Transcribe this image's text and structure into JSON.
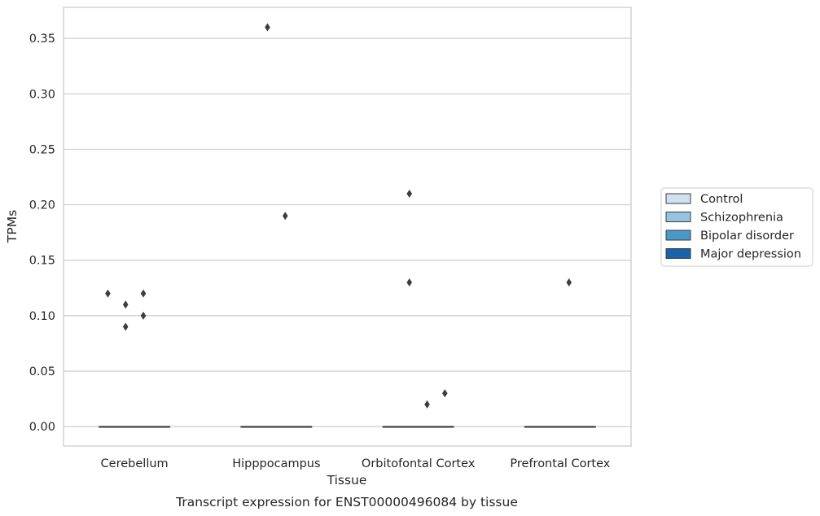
{
  "chart_data": {
    "type": "box",
    "title": "",
    "caption": "Transcript expression for ENST00000496084 by tissue",
    "xlabel": "Tissue",
    "ylabel": "TPMs",
    "ylim": [
      -0.0175,
      0.378
    ],
    "yticks": [
      "0.00",
      "0.05",
      "0.10",
      "0.15",
      "0.20",
      "0.25",
      "0.30",
      "0.35"
    ],
    "categories": [
      "Cerebellum",
      "Hipppocampus",
      "Orbitofontal Cortex",
      "Prefrontal Cortex"
    ],
    "grid": "horizontal",
    "legend_position": "right",
    "series": [
      {
        "name": "Control",
        "color": "#d0e1f2"
      },
      {
        "name": "Schizophrenia",
        "color": "#94c4df"
      },
      {
        "name": "Bipolar disorder",
        "color": "#4a98c9"
      },
      {
        "name": "Major depression",
        "color": "#1764ab"
      }
    ],
    "boxes": [
      {
        "category": "Cerebellum",
        "series": "Control",
        "median": 0.0,
        "q1": 0.0,
        "q3": 0.0,
        "outliers": [
          0.12
        ]
      },
      {
        "category": "Cerebellum",
        "series": "Schizophrenia",
        "median": 0.0,
        "q1": 0.0,
        "q3": 0.0,
        "outliers": [
          0.11,
          0.09
        ]
      },
      {
        "category": "Cerebellum",
        "series": "Bipolar disorder",
        "median": 0.0,
        "q1": 0.0,
        "q3": 0.0,
        "outliers": [
          0.12,
          0.1
        ]
      },
      {
        "category": "Cerebellum",
        "series": "Major depression",
        "median": 0.0,
        "q1": 0.0,
        "q3": 0.0,
        "outliers": []
      },
      {
        "category": "Hipppocampus",
        "series": "Control",
        "median": 0.0,
        "q1": 0.0,
        "q3": 0.0,
        "outliers": []
      },
      {
        "category": "Hipppocampus",
        "series": "Schizophrenia",
        "median": 0.0,
        "q1": 0.0,
        "q3": 0.0,
        "outliers": [
          0.36
        ]
      },
      {
        "category": "Hipppocampus",
        "series": "Bipolar disorder",
        "median": 0.0,
        "q1": 0.0,
        "q3": 0.0,
        "outliers": [
          0.19
        ]
      },
      {
        "category": "Hipppocampus",
        "series": "Major depression",
        "median": 0.0,
        "q1": 0.0,
        "q3": 0.0,
        "outliers": []
      },
      {
        "category": "Orbitofontal Cortex",
        "series": "Control",
        "median": 0.0,
        "q1": 0.0,
        "q3": 0.0,
        "outliers": []
      },
      {
        "category": "Orbitofontal Cortex",
        "series": "Schizophrenia",
        "median": 0.0,
        "q1": 0.0,
        "q3": 0.0,
        "outliers": [
          0.21,
          0.13
        ]
      },
      {
        "category": "Orbitofontal Cortex",
        "series": "Bipolar disorder",
        "median": 0.0,
        "q1": 0.0,
        "q3": 0.0,
        "outliers": [
          0.02
        ]
      },
      {
        "category": "Orbitofontal Cortex",
        "series": "Major depression",
        "median": 0.0,
        "q1": 0.0,
        "q3": 0.0,
        "outliers": [
          0.03
        ]
      },
      {
        "category": "Prefrontal Cortex",
        "series": "Control",
        "median": 0.0,
        "q1": 0.0,
        "q3": 0.0,
        "outliers": []
      },
      {
        "category": "Prefrontal Cortex",
        "series": "Schizophrenia",
        "median": 0.0,
        "q1": 0.0,
        "q3": 0.0,
        "outliers": []
      },
      {
        "category": "Prefrontal Cortex",
        "series": "Bipolar disorder",
        "median": 0.0,
        "q1": 0.0,
        "q3": 0.0,
        "outliers": [
          0.13
        ]
      },
      {
        "category": "Prefrontal Cortex",
        "series": "Major depression",
        "median": 0.0,
        "q1": 0.0,
        "q3": 0.0,
        "outliers": []
      }
    ]
  }
}
